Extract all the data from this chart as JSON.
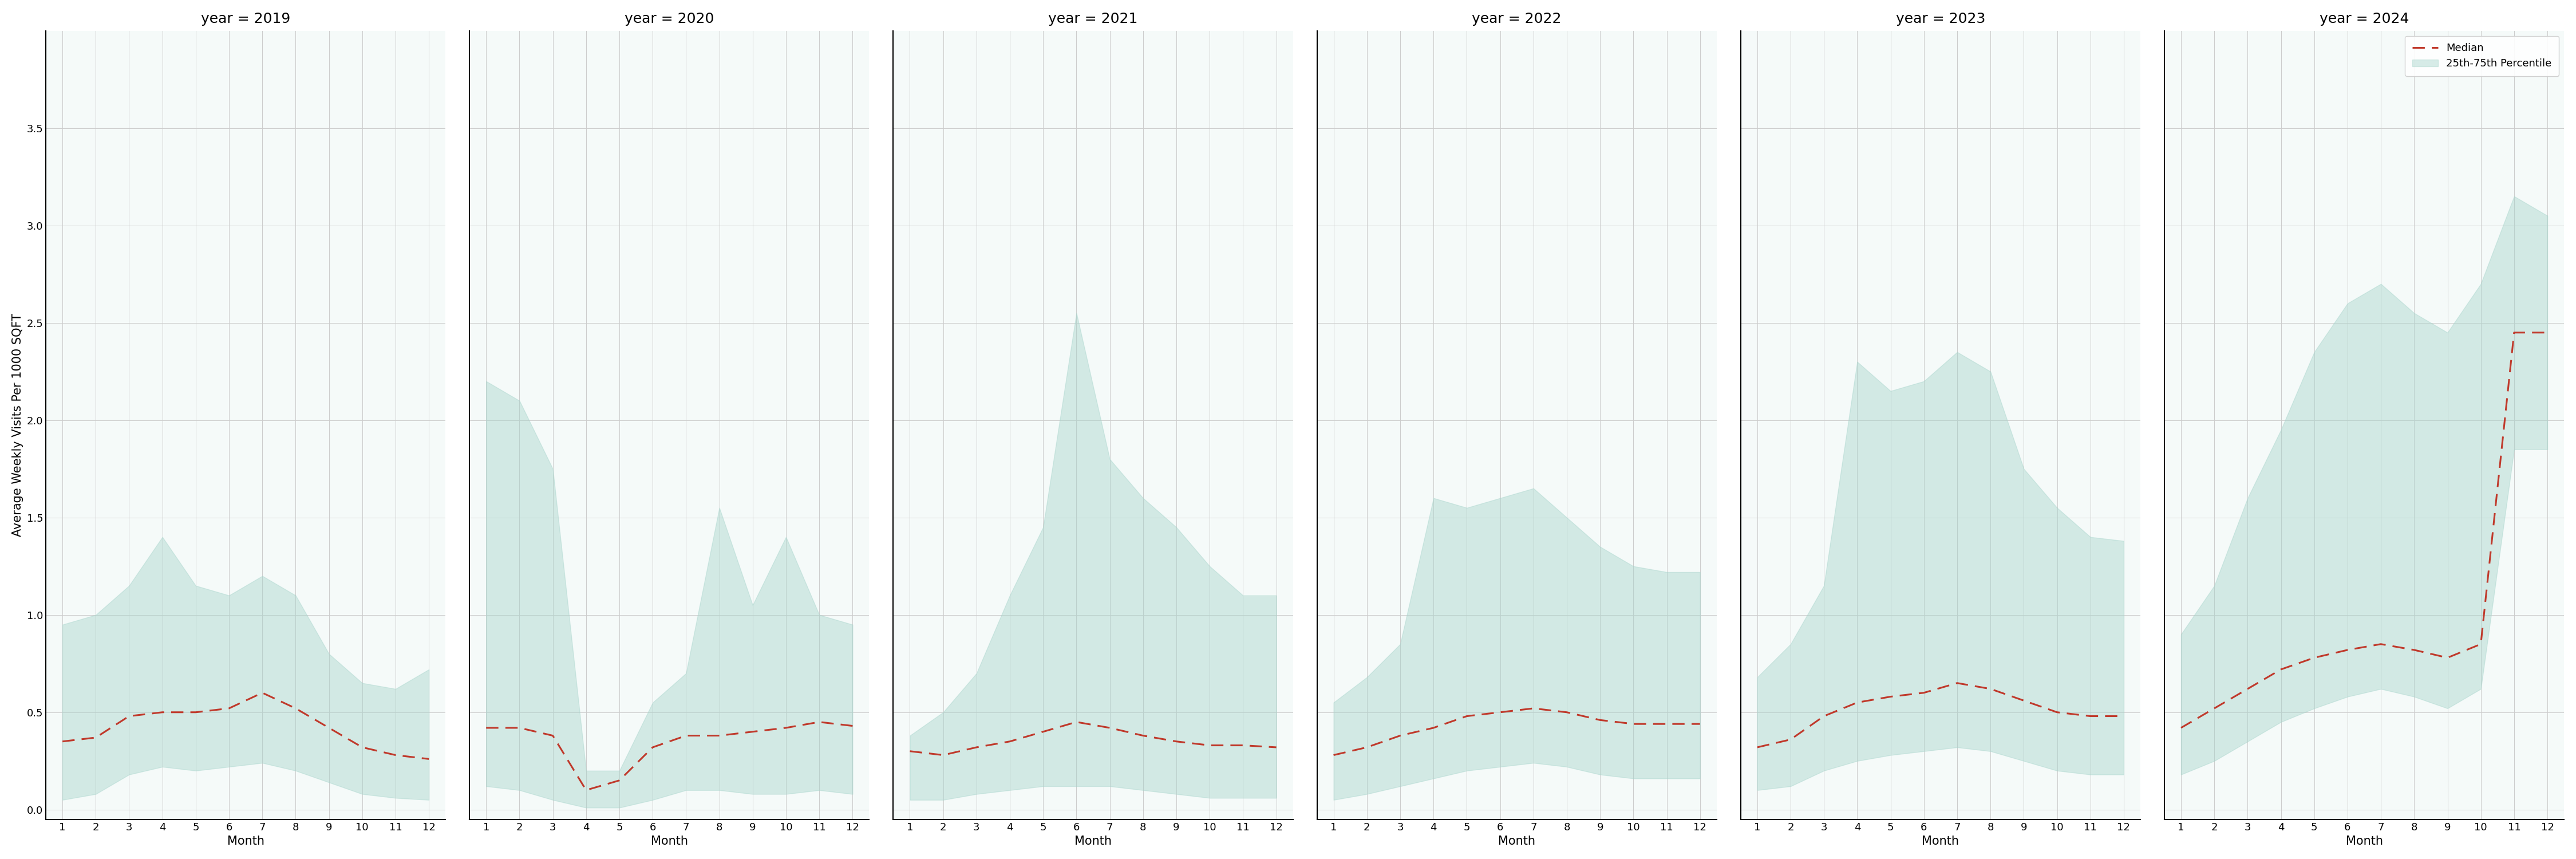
{
  "years": [
    2019,
    2020,
    2021,
    2022,
    2023,
    2024
  ],
  "months": [
    1,
    2,
    3,
    4,
    5,
    6,
    7,
    8,
    9,
    10,
    11,
    12
  ],
  "median": {
    "2019": [
      0.35,
      0.37,
      0.48,
      0.5,
      0.5,
      0.52,
      0.6,
      0.52,
      0.42,
      0.32,
      0.28,
      0.26
    ],
    "2020": [
      0.42,
      0.42,
      0.38,
      0.1,
      0.15,
      0.32,
      0.38,
      0.38,
      0.4,
      0.42,
      0.45,
      0.43
    ],
    "2021": [
      0.3,
      0.28,
      0.32,
      0.35,
      0.4,
      0.45,
      0.42,
      0.38,
      0.35,
      0.33,
      0.33,
      0.32
    ],
    "2022": [
      0.28,
      0.32,
      0.38,
      0.42,
      0.48,
      0.5,
      0.52,
      0.5,
      0.46,
      0.44,
      0.44,
      0.44
    ],
    "2023": [
      0.32,
      0.36,
      0.48,
      0.55,
      0.58,
      0.6,
      0.65,
      0.62,
      0.56,
      0.5,
      0.48,
      0.48
    ],
    "2024": [
      0.42,
      0.52,
      0.62,
      0.72,
      0.78,
      0.82,
      0.85,
      0.82,
      0.78,
      0.85,
      2.45,
      2.45
    ]
  },
  "q25": {
    "2019": [
      0.05,
      0.08,
      0.18,
      0.22,
      0.2,
      0.22,
      0.24,
      0.2,
      0.14,
      0.08,
      0.06,
      0.05
    ],
    "2020": [
      0.12,
      0.1,
      0.05,
      0.01,
      0.01,
      0.05,
      0.1,
      0.1,
      0.08,
      0.08,
      0.1,
      0.08
    ],
    "2021": [
      0.05,
      0.05,
      0.08,
      0.1,
      0.12,
      0.12,
      0.12,
      0.1,
      0.08,
      0.06,
      0.06,
      0.06
    ],
    "2022": [
      0.05,
      0.08,
      0.12,
      0.16,
      0.2,
      0.22,
      0.24,
      0.22,
      0.18,
      0.16,
      0.16,
      0.16
    ],
    "2023": [
      0.1,
      0.12,
      0.2,
      0.25,
      0.28,
      0.3,
      0.32,
      0.3,
      0.25,
      0.2,
      0.18,
      0.18
    ],
    "2024": [
      0.18,
      0.25,
      0.35,
      0.45,
      0.52,
      0.58,
      0.62,
      0.58,
      0.52,
      0.62,
      1.85,
      1.85
    ]
  },
  "q75": {
    "2019": [
      0.95,
      1.0,
      1.15,
      1.4,
      1.15,
      1.1,
      1.2,
      1.1,
      0.8,
      0.65,
      0.62,
      0.72
    ],
    "2020": [
      2.2,
      2.1,
      1.75,
      0.2,
      0.2,
      0.55,
      0.7,
      1.55,
      1.05,
      1.4,
      1.0,
      0.95
    ],
    "2021": [
      0.38,
      0.5,
      0.7,
      1.1,
      1.45,
      2.55,
      1.8,
      1.6,
      1.45,
      1.25,
      1.1,
      1.1
    ],
    "2022": [
      0.55,
      0.68,
      0.85,
      1.6,
      1.55,
      1.6,
      1.65,
      1.5,
      1.35,
      1.25,
      1.22,
      1.22
    ],
    "2023": [
      0.68,
      0.85,
      1.15,
      2.3,
      2.15,
      2.2,
      2.35,
      2.25,
      1.75,
      1.55,
      1.4,
      1.38
    ],
    "2024": [
      0.9,
      1.15,
      1.6,
      1.95,
      2.35,
      2.6,
      2.7,
      2.55,
      2.45,
      2.7,
      3.15,
      3.05
    ]
  },
  "fill_color": "#a8d5cc",
  "fill_alpha": 0.45,
  "line_color": "#c0392b",
  "ylabel": "Average Weekly Visits Per 1000 SQFT",
  "xlabel": "Month",
  "ylim": [
    -0.05,
    4.0
  ],
  "yticks": [
    0.0,
    0.5,
    1.0,
    1.5,
    2.0,
    2.5,
    3.0,
    3.5
  ],
  "legend_median": "Median",
  "legend_fill": "25th-75th Percentile",
  "background_color": "#f5faf9",
  "grid_color": "#cccccc",
  "title_fontsize": 18,
  "label_fontsize": 15,
  "tick_fontsize": 13
}
